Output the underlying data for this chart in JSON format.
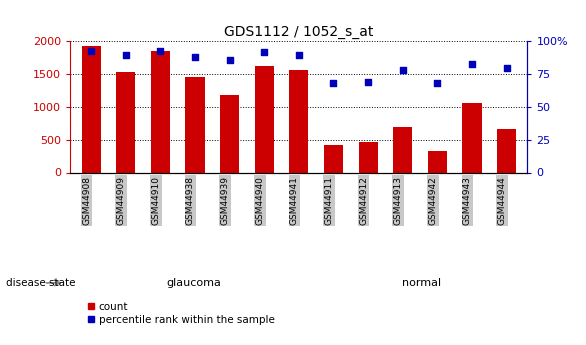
{
  "title": "GDS1112 / 1052_s_at",
  "samples": [
    "GSM44908",
    "GSM44909",
    "GSM44910",
    "GSM44938",
    "GSM44939",
    "GSM44940",
    "GSM44941",
    "GSM44911",
    "GSM44912",
    "GSM44913",
    "GSM44942",
    "GSM44943",
    "GSM44944"
  ],
  "counts": [
    1930,
    1540,
    1860,
    1460,
    1180,
    1630,
    1560,
    420,
    460,
    700,
    330,
    1060,
    660
  ],
  "percentiles": [
    93,
    90,
    93,
    88,
    86,
    92,
    90,
    68,
    69,
    78,
    68,
    83,
    80
  ],
  "group_labels": [
    "glaucoma",
    "normal"
  ],
  "group_split": 7,
  "total_samples": 13,
  "ylim_left": [
    0,
    2000
  ],
  "ylim_right": [
    0,
    100
  ],
  "yticks_left": [
    0,
    500,
    1000,
    1500,
    2000
  ],
  "yticks_right": [
    0,
    25,
    50,
    75,
    100
  ],
  "bar_color": "#cc0000",
  "dot_color": "#0000bb",
  "glaucoma_color": "#ccffcc",
  "normal_color": "#88ee88",
  "tick_bg_color": "#c8c8c8",
  "disease_state_label": "disease state",
  "legend_count": "count",
  "legend_percentile": "percentile rank within the sample"
}
